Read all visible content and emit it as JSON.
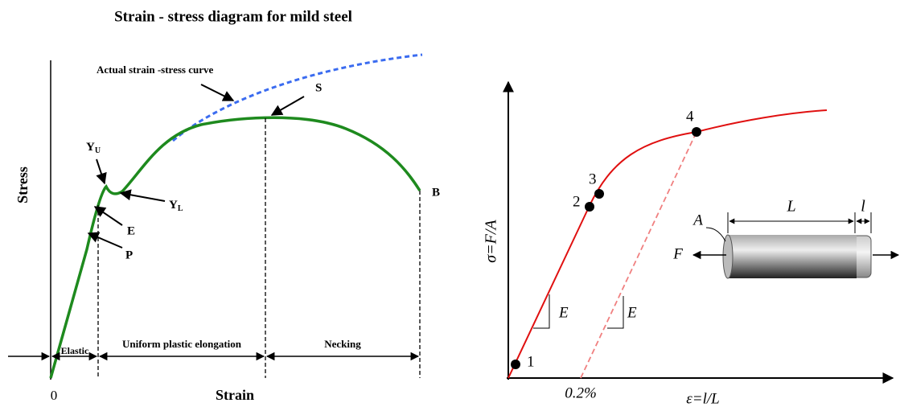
{
  "left": {
    "title": "Strain  - stress diagram for mild steel",
    "y_axis_label": "Stress",
    "x_axis_label": "Strain",
    "origin": "0",
    "annotation": "Actual strain -stress curve",
    "points": {
      "S": "S",
      "YU": {
        "main": "Y",
        "sub": "U"
      },
      "YL": {
        "main": "Y",
        "sub": "L"
      },
      "E": "E",
      "P": "P",
      "B": "B"
    },
    "regions": [
      "Elastic",
      "Uniform plastic elongation",
      "Necking"
    ]
  },
  "right": {
    "y_axis_label": "σ=F/A",
    "x_axis_label": "ε=l/L",
    "offset_label": "0.2%",
    "points": [
      "1",
      "2",
      "3",
      "4"
    ],
    "slope_labels": [
      "E",
      "E"
    ],
    "specimen": {
      "area": "A",
      "length": "L",
      "elongation": "l",
      "force": "F"
    }
  }
}
